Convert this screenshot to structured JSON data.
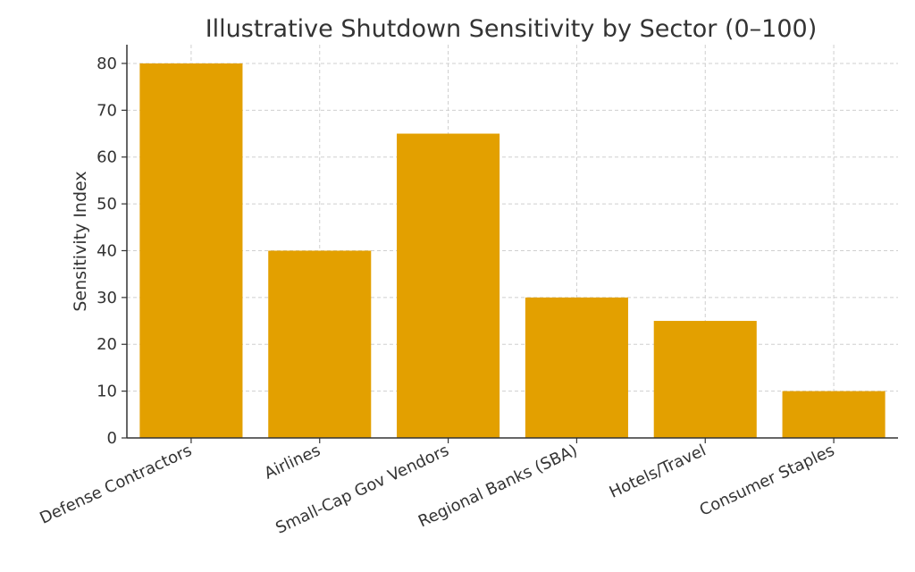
{
  "chart_data": {
    "type": "bar",
    "title": "Illustrative Shutdown Sensitivity by Sector (0–100)",
    "xlabel": "",
    "ylabel": "Sensitivity Index",
    "categories": [
      "Defense Contractors",
      "Airlines",
      "Small-Cap Gov Vendors",
      "Regional Banks (SBA)",
      "Hotels/Travel",
      "Consumer Staples"
    ],
    "values": [
      80,
      40,
      65,
      30,
      25,
      10
    ],
    "ylim": [
      0,
      84
    ],
    "yticks": [
      0,
      10,
      20,
      30,
      40,
      50,
      60,
      70,
      80
    ],
    "grid": true,
    "bar_color": "#E3A000"
  }
}
